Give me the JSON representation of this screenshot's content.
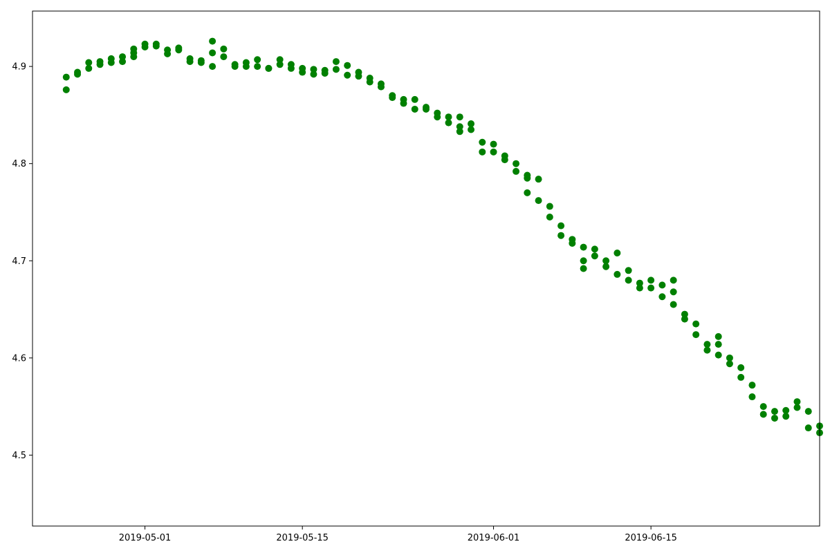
{
  "chart_data": {
    "type": "scatter",
    "title": "",
    "xlabel": "",
    "ylabel": "",
    "marker_color": "#008000",
    "grid": false,
    "legend": "none",
    "xlim": [
      "2019-04-21",
      "2019-06-30"
    ],
    "ylim": [
      4.427,
      4.957
    ],
    "x_ticks": [
      {
        "value": "2019-05-01",
        "label": "2019-05-01"
      },
      {
        "value": "2019-05-15",
        "label": "2019-05-15"
      },
      {
        "value": "2019-06-01",
        "label": "2019-06-01"
      },
      {
        "value": "2019-06-15",
        "label": "2019-06-15"
      }
    ],
    "y_ticks": [
      {
        "value": 4.5,
        "label": "4.5"
      },
      {
        "value": 4.6,
        "label": "4.6"
      },
      {
        "value": 4.7,
        "label": "4.7"
      },
      {
        "value": 4.8,
        "label": "4.8"
      },
      {
        "value": 4.9,
        "label": "4.9"
      }
    ],
    "points": [
      [
        "2019-04-24",
        4.876
      ],
      [
        "2019-04-24",
        4.889
      ],
      [
        "2019-04-25",
        4.894
      ],
      [
        "2019-04-25",
        4.892
      ],
      [
        "2019-04-26",
        4.898
      ],
      [
        "2019-04-26",
        4.904
      ],
      [
        "2019-04-27",
        4.902
      ],
      [
        "2019-04-27",
        4.905
      ],
      [
        "2019-04-28",
        4.904
      ],
      [
        "2019-04-28",
        4.908
      ],
      [
        "2019-04-29",
        4.91
      ],
      [
        "2019-04-29",
        4.905
      ],
      [
        "2019-04-30",
        4.91
      ],
      [
        "2019-04-30",
        4.918
      ],
      [
        "2019-04-30",
        4.914
      ],
      [
        "2019-05-01",
        4.92
      ],
      [
        "2019-05-01",
        4.923
      ],
      [
        "2019-05-02",
        4.921
      ],
      [
        "2019-05-02",
        4.923
      ],
      [
        "2019-05-03",
        4.917
      ],
      [
        "2019-05-03",
        4.913
      ],
      [
        "2019-05-04",
        4.919
      ],
      [
        "2019-05-04",
        4.917
      ],
      [
        "2019-05-05",
        4.908
      ],
      [
        "2019-05-05",
        4.905
      ],
      [
        "2019-05-06",
        4.906
      ],
      [
        "2019-05-06",
        4.904
      ],
      [
        "2019-05-07",
        4.9
      ],
      [
        "2019-05-07",
        4.914
      ],
      [
        "2019-05-07",
        4.926
      ],
      [
        "2019-05-08",
        4.918
      ],
      [
        "2019-05-08",
        4.91
      ],
      [
        "2019-05-09",
        4.902
      ],
      [
        "2019-05-09",
        4.9
      ],
      [
        "2019-05-10",
        4.9
      ],
      [
        "2019-05-10",
        4.904
      ],
      [
        "2019-05-11",
        4.907
      ],
      [
        "2019-05-11",
        4.9
      ],
      [
        "2019-05-12",
        4.898
      ],
      [
        "2019-05-12",
        4.898
      ],
      [
        "2019-05-13",
        4.907
      ],
      [
        "2019-05-13",
        4.902
      ],
      [
        "2019-05-14",
        4.898
      ],
      [
        "2019-05-14",
        4.902
      ],
      [
        "2019-05-15",
        4.898
      ],
      [
        "2019-05-15",
        4.894
      ],
      [
        "2019-05-16",
        4.897
      ],
      [
        "2019-05-16",
        4.892
      ],
      [
        "2019-05-17",
        4.896
      ],
      [
        "2019-05-17",
        4.893
      ],
      [
        "2019-05-18",
        4.897
      ],
      [
        "2019-05-18",
        4.905
      ],
      [
        "2019-05-19",
        4.901
      ],
      [
        "2019-05-19",
        4.891
      ],
      [
        "2019-05-20",
        4.894
      ],
      [
        "2019-05-20",
        4.89
      ],
      [
        "2019-05-21",
        4.888
      ],
      [
        "2019-05-21",
        4.884
      ],
      [
        "2019-05-22",
        4.882
      ],
      [
        "2019-05-22",
        4.879
      ],
      [
        "2019-05-23",
        4.87
      ],
      [
        "2019-05-23",
        4.868
      ],
      [
        "2019-05-24",
        4.866
      ],
      [
        "2019-05-24",
        4.862
      ],
      [
        "2019-05-25",
        4.866
      ],
      [
        "2019-05-25",
        4.856
      ],
      [
        "2019-05-26",
        4.858
      ],
      [
        "2019-05-26",
        4.856
      ],
      [
        "2019-05-27",
        4.852
      ],
      [
        "2019-05-27",
        4.848
      ],
      [
        "2019-05-28",
        4.848
      ],
      [
        "2019-05-28",
        4.842
      ],
      [
        "2019-05-29",
        4.838
      ],
      [
        "2019-05-29",
        4.833
      ],
      [
        "2019-05-29",
        4.848
      ],
      [
        "2019-05-30",
        4.841
      ],
      [
        "2019-05-30",
        4.835
      ],
      [
        "2019-05-31",
        4.822
      ],
      [
        "2019-05-31",
        4.812
      ],
      [
        "2019-06-01",
        4.82
      ],
      [
        "2019-06-01",
        4.812
      ],
      [
        "2019-06-02",
        4.808
      ],
      [
        "2019-06-02",
        4.804
      ],
      [
        "2019-06-03",
        4.8
      ],
      [
        "2019-06-03",
        4.792
      ],
      [
        "2019-06-04",
        4.785
      ],
      [
        "2019-06-04",
        4.77
      ],
      [
        "2019-06-04",
        4.788
      ],
      [
        "2019-06-05",
        4.784
      ],
      [
        "2019-06-05",
        4.762
      ],
      [
        "2019-06-06",
        4.756
      ],
      [
        "2019-06-06",
        4.745
      ],
      [
        "2019-06-07",
        4.736
      ],
      [
        "2019-06-07",
        4.726
      ],
      [
        "2019-06-08",
        4.722
      ],
      [
        "2019-06-08",
        4.718
      ],
      [
        "2019-06-09",
        4.714
      ],
      [
        "2019-06-09",
        4.692
      ],
      [
        "2019-06-09",
        4.7
      ],
      [
        "2019-06-10",
        4.712
      ],
      [
        "2019-06-10",
        4.705
      ],
      [
        "2019-06-11",
        4.7
      ],
      [
        "2019-06-11",
        4.694
      ],
      [
        "2019-06-12",
        4.708
      ],
      [
        "2019-06-12",
        4.686
      ],
      [
        "2019-06-13",
        4.68
      ],
      [
        "2019-06-13",
        4.69
      ],
      [
        "2019-06-14",
        4.677
      ],
      [
        "2019-06-14",
        4.672
      ],
      [
        "2019-06-15",
        4.68
      ],
      [
        "2019-06-15",
        4.672
      ],
      [
        "2019-06-16",
        4.675
      ],
      [
        "2019-06-16",
        4.663
      ],
      [
        "2019-06-17",
        4.668
      ],
      [
        "2019-06-17",
        4.68
      ],
      [
        "2019-06-17",
        4.655
      ],
      [
        "2019-06-18",
        4.645
      ],
      [
        "2019-06-18",
        4.64
      ],
      [
        "2019-06-19",
        4.635
      ],
      [
        "2019-06-19",
        4.624
      ],
      [
        "2019-06-20",
        4.614
      ],
      [
        "2019-06-20",
        4.608
      ],
      [
        "2019-06-21",
        4.614
      ],
      [
        "2019-06-21",
        4.603
      ],
      [
        "2019-06-21",
        4.622
      ],
      [
        "2019-06-22",
        4.6
      ],
      [
        "2019-06-22",
        4.594
      ],
      [
        "2019-06-23",
        4.59
      ],
      [
        "2019-06-23",
        4.58
      ],
      [
        "2019-06-24",
        4.572
      ],
      [
        "2019-06-24",
        4.56
      ],
      [
        "2019-06-25",
        4.55
      ],
      [
        "2019-06-25",
        4.542
      ],
      [
        "2019-06-26",
        4.538
      ],
      [
        "2019-06-26",
        4.545
      ],
      [
        "2019-06-27",
        4.546
      ],
      [
        "2019-06-27",
        4.54
      ],
      [
        "2019-06-28",
        4.555
      ],
      [
        "2019-06-28",
        4.549
      ],
      [
        "2019-06-29",
        4.545
      ],
      [
        "2019-06-29",
        4.528
      ],
      [
        "2019-06-30",
        4.53
      ],
      [
        "2019-06-30",
        4.523
      ]
    ]
  }
}
